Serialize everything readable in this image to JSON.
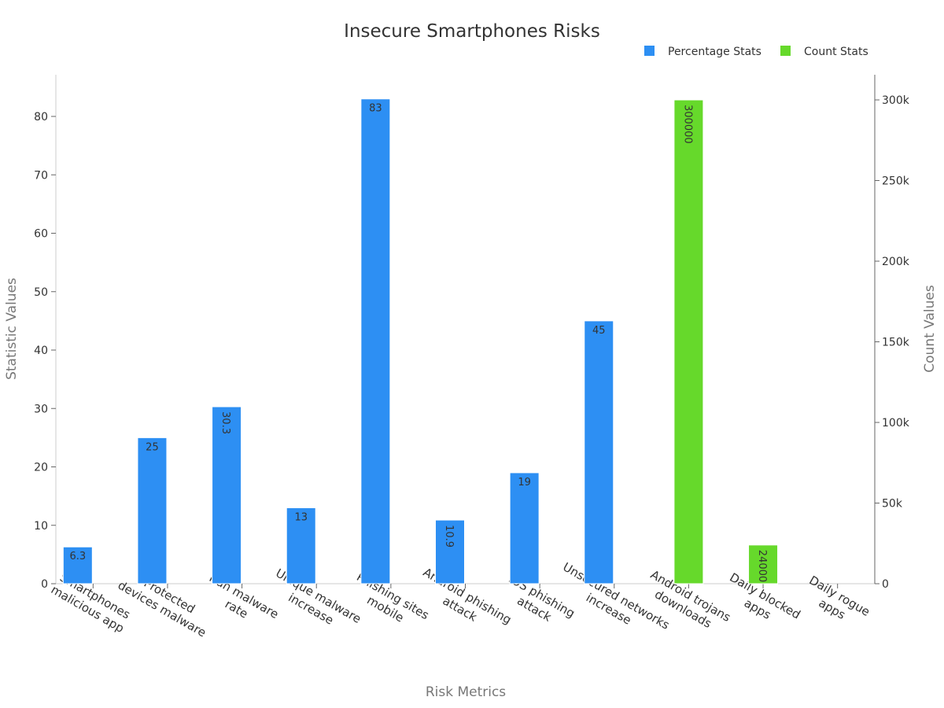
{
  "chart_data": {
    "type": "bar",
    "title": "Insecure Smartphones Risks",
    "xlabel": "Risk Metrics",
    "ylabel": "Statistic Values",
    "y2label": "Count Values",
    "categories": [
      [
        "Smartphones",
        "malicious app"
      ],
      [
        "Protected",
        "devices malware"
      ],
      [
        "Iran malware",
        "rate"
      ],
      [
        "Unique malware",
        "increase"
      ],
      [
        "Phishing sites",
        "mobile"
      ],
      [
        "Android phishing",
        "attack"
      ],
      [
        "iOS phishing",
        "attack"
      ],
      [
        "Unsecured networks",
        "increase"
      ],
      [
        "Android trojans",
        "downloads"
      ],
      [
        "Daily blocked",
        "apps"
      ],
      [
        "Daily rogue",
        "apps"
      ]
    ],
    "series": [
      {
        "name": "Percentage Stats",
        "color": "#2d8ff3",
        "axis": "left",
        "values": [
          6.3,
          25,
          30.3,
          13,
          83,
          10.9,
          19,
          45,
          null,
          null,
          null
        ],
        "labels": [
          "6.3",
          "25",
          "30.3",
          "13",
          "83",
          "10.9",
          "19",
          "45",
          null,
          null,
          null
        ]
      },
      {
        "name": "Count Stats",
        "color": "#66d92b",
        "axis": "right",
        "values": [
          null,
          null,
          null,
          null,
          null,
          null,
          null,
          null,
          300000,
          24000,
          0
        ],
        "labels": [
          null,
          null,
          null,
          null,
          null,
          null,
          null,
          null,
          "300000",
          "24000",
          null
        ]
      }
    ],
    "ylim": [
      0,
      87.3
    ],
    "y_ticks": [
      0,
      10,
      20,
      30,
      40,
      50,
      60,
      70,
      80
    ],
    "y2lim": [
      0,
      315600
    ],
    "y2_ticks": [
      0,
      50000,
      100000,
      150000,
      200000,
      250000,
      300000
    ],
    "y2_tick_labels": [
      "0",
      "50k",
      "100k",
      "150k",
      "200k",
      "250k",
      "300k"
    ],
    "legend_position": "top-right",
    "grid": false
  }
}
